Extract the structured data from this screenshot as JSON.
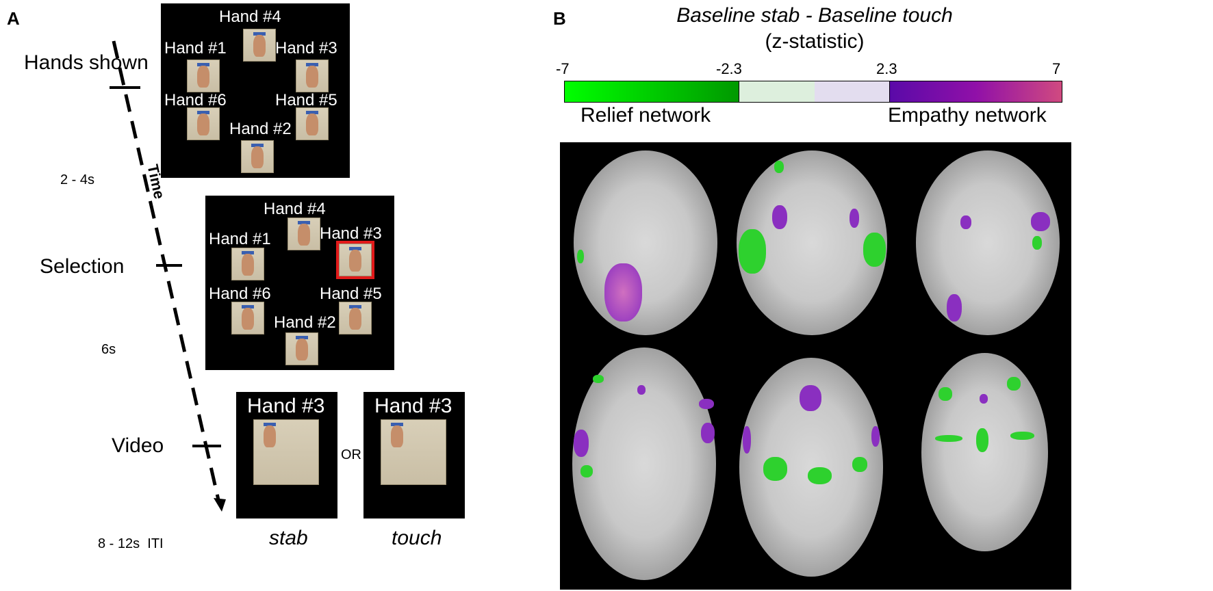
{
  "panel_a": {
    "letter": "A",
    "stages": [
      "Hands shown",
      "Selection",
      "Video"
    ],
    "durations": [
      "2 - 4s",
      "6s",
      "8 - 12s  ITI"
    ],
    "time_label": "Time",
    "hands_labels": [
      "Hand #4",
      "Hand #1",
      "Hand #3",
      "Hand #6",
      "Hand #5",
      "Hand #2"
    ],
    "selected_hand": "Hand #3",
    "video": {
      "label_left": "Hand #3",
      "label_right": "Hand #3",
      "or": "OR",
      "cond_left": "stab",
      "cond_right": "touch"
    },
    "selection_color": "#e21a1a"
  },
  "panel_b": {
    "letter": "B",
    "title": "Baseline stab - Baseline touch",
    "subtitle": "(z-statistic)",
    "colorbar": {
      "ticks": [
        "-7",
        "-2.3",
        "2.3",
        "7"
      ],
      "range": [
        -7,
        7
      ],
      "threshold": 2.3,
      "negative_colors": [
        "#00ff00",
        "#009900"
      ],
      "positive_colors": [
        "#5a0aa8",
        "#d04a80"
      ]
    },
    "negative_label": "Relief network",
    "positive_label": "Empathy network"
  }
}
